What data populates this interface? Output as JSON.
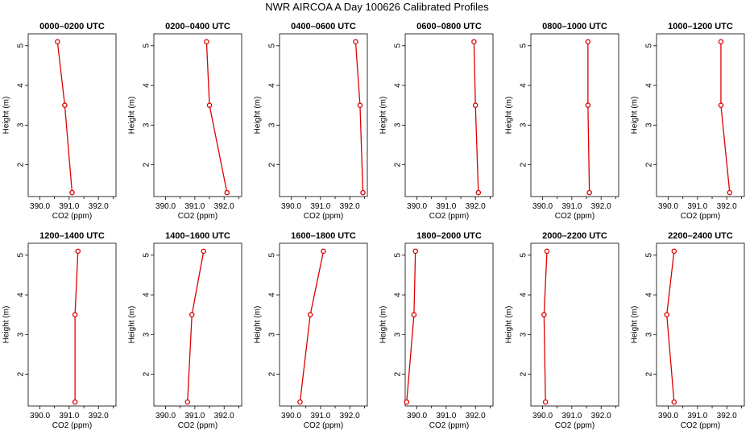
{
  "page": {
    "title": "NWR AIRCOA A  Day 100626  Calibrated Profiles"
  },
  "colors": {
    "series": "#dd0000",
    "axis": "#000000"
  },
  "chart_data": [
    {
      "type": "line",
      "title": "0000–0200 UTC",
      "xlabel": "CO2 (ppm)",
      "ylabel": "Height (m)",
      "xlim": [
        389.6,
        392.6
      ],
      "ylim": [
        1.2,
        5.3
      ],
      "xticks": [
        "390.0",
        "391.0",
        "392.0"
      ],
      "yticks": [
        "2",
        "3",
        "4",
        "5"
      ],
      "x": [
        390.6,
        390.85,
        391.1
      ],
      "y": [
        5.1,
        3.5,
        1.3
      ]
    },
    {
      "type": "line",
      "title": "0200–0400 UTC",
      "xlabel": "CO2 (ppm)",
      "ylabel": "Height (m)",
      "xlim": [
        389.6,
        392.6
      ],
      "ylim": [
        1.2,
        5.3
      ],
      "xticks": [
        "390.0",
        "391.0",
        "392.0"
      ],
      "yticks": [
        "2",
        "3",
        "4",
        "5"
      ],
      "x": [
        391.4,
        391.5,
        392.1
      ],
      "y": [
        5.1,
        3.5,
        1.3
      ]
    },
    {
      "type": "line",
      "title": "0400–0600 UTC",
      "xlabel": "CO2 (ppm)",
      "ylabel": "Height (m)",
      "xlim": [
        389.6,
        392.6
      ],
      "ylim": [
        1.2,
        5.3
      ],
      "xticks": [
        "390.0",
        "391.0",
        "392.0"
      ],
      "yticks": [
        "2",
        "3",
        "4",
        "5"
      ],
      "x": [
        392.2,
        392.35,
        392.45
      ],
      "y": [
        5.1,
        3.5,
        1.3
      ]
    },
    {
      "type": "line",
      "title": "0600–0800 UTC",
      "xlabel": "CO2 (ppm)",
      "ylabel": "Height (m)",
      "xlim": [
        389.6,
        392.6
      ],
      "ylim": [
        1.2,
        5.3
      ],
      "xticks": [
        "390.0",
        "391.0",
        "392.0"
      ],
      "yticks": [
        "2",
        "3",
        "4",
        "5"
      ],
      "x": [
        391.95,
        392.0,
        392.1
      ],
      "y": [
        5.1,
        3.5,
        1.3
      ]
    },
    {
      "type": "line",
      "title": "0800–1000 UTC",
      "xlabel": "CO2 (ppm)",
      "ylabel": "Height (m)",
      "xlim": [
        389.6,
        392.6
      ],
      "ylim": [
        1.2,
        5.3
      ],
      "xticks": [
        "390.0",
        "391.0",
        "392.0"
      ],
      "yticks": [
        "2",
        "3",
        "4",
        "5"
      ],
      "x": [
        391.55,
        391.55,
        391.6
      ],
      "y": [
        5.1,
        3.5,
        1.3
      ]
    },
    {
      "type": "line",
      "title": "1000–1200 UTC",
      "xlabel": "CO2 (ppm)",
      "ylabel": "Height (m)",
      "xlim": [
        389.6,
        392.6
      ],
      "ylim": [
        1.2,
        5.3
      ],
      "xticks": [
        "390.0",
        "391.0",
        "392.0"
      ],
      "yticks": [
        "2",
        "3",
        "4",
        "5"
      ],
      "x": [
        391.8,
        391.8,
        392.1
      ],
      "y": [
        5.1,
        3.5,
        1.3
      ]
    },
    {
      "type": "line",
      "title": "1200–1400 UTC",
      "xlabel": "CO2 (ppm)",
      "ylabel": "Height (m)",
      "xlim": [
        389.6,
        392.6
      ],
      "ylim": [
        1.2,
        5.3
      ],
      "xticks": [
        "390.0",
        "391.0",
        "392.0"
      ],
      "yticks": [
        "2",
        "3",
        "4",
        "5"
      ],
      "x": [
        391.3,
        391.2,
        391.2
      ],
      "y": [
        5.1,
        3.5,
        1.3
      ]
    },
    {
      "type": "line",
      "title": "1400–1600 UTC",
      "xlabel": "CO2 (ppm)",
      "ylabel": "Height (m)",
      "xlim": [
        389.6,
        392.6
      ],
      "ylim": [
        1.2,
        5.3
      ],
      "xticks": [
        "390.0",
        "391.0",
        "392.0"
      ],
      "yticks": [
        "2",
        "3",
        "4",
        "5"
      ],
      "x": [
        391.3,
        390.9,
        390.75
      ],
      "y": [
        5.1,
        3.5,
        1.3
      ]
    },
    {
      "type": "line",
      "title": "1600–1800 UTC",
      "xlabel": "CO2 (ppm)",
      "ylabel": "Height (m)",
      "xlim": [
        389.6,
        392.6
      ],
      "ylim": [
        1.2,
        5.3
      ],
      "xticks": [
        "390.0",
        "391.0",
        "392.0"
      ],
      "yticks": [
        "2",
        "3",
        "4",
        "5"
      ],
      "x": [
        391.1,
        390.65,
        390.3
      ],
      "y": [
        5.1,
        3.5,
        1.3
      ]
    },
    {
      "type": "line",
      "title": "1800–2000 UTC",
      "xlabel": "CO2 (ppm)",
      "ylabel": "Height (m)",
      "xlim": [
        389.6,
        392.6
      ],
      "ylim": [
        1.2,
        5.3
      ],
      "xticks": [
        "390.0",
        "391.0",
        "392.0"
      ],
      "yticks": [
        "2",
        "3",
        "4",
        "5"
      ],
      "x": [
        389.95,
        389.9,
        389.65
      ],
      "y": [
        5.1,
        3.5,
        1.3
      ]
    },
    {
      "type": "line",
      "title": "2000–2200 UTC",
      "xlabel": "CO2 (ppm)",
      "ylabel": "Height (m)",
      "xlim": [
        389.6,
        392.6
      ],
      "ylim": [
        1.2,
        5.3
      ],
      "xticks": [
        "390.0",
        "391.0",
        "392.0"
      ],
      "yticks": [
        "2",
        "3",
        "4",
        "5"
      ],
      "x": [
        390.15,
        390.05,
        390.1
      ],
      "y": [
        5.1,
        3.5,
        1.3
      ]
    },
    {
      "type": "line",
      "title": "2200–2400 UTC",
      "xlabel": "CO2 (ppm)",
      "ylabel": "Height (m)",
      "xlim": [
        389.6,
        392.6
      ],
      "ylim": [
        1.2,
        5.3
      ],
      "xticks": [
        "390.0",
        "391.0",
        "392.0"
      ],
      "yticks": [
        "2",
        "3",
        "4",
        "5"
      ],
      "x": [
        390.2,
        389.95,
        390.2
      ],
      "y": [
        5.1,
        3.5,
        1.3
      ]
    }
  ]
}
